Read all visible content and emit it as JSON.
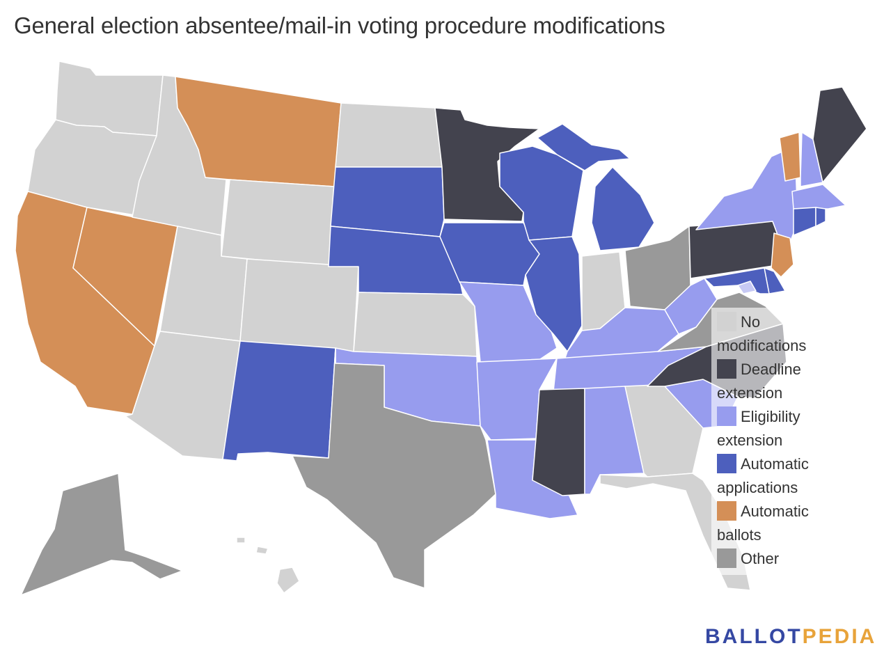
{
  "title": "General election absentee/mail-in voting procedure modifications",
  "colors": {
    "none": "#d2d2d2",
    "deadline": "#43434e",
    "eligibility": "#979cee",
    "automatic_applications": "#4d5fbd",
    "automatic_ballots": "#d48f57",
    "other": "#999999",
    "light": "#c7c9f4"
  },
  "legend": [
    {
      "label": "No modifications",
      "color": "#d2d2d2"
    },
    {
      "label": "Deadline extension",
      "color": "#43434e"
    },
    {
      "label": "Eligibility extension",
      "color": "#979cee"
    },
    {
      "label": "Automatic applications",
      "color": "#4d5fbd"
    },
    {
      "label": "Automatic ballots",
      "color": "#d48f57"
    },
    {
      "label": "Other",
      "color": "#999999"
    }
  ],
  "logo": {
    "part1": "BALLOT",
    "part2": "PEDIA",
    "color1": "#3548a3",
    "color2": "#e8a33a"
  },
  "states": [
    {
      "id": "WA",
      "category": "none"
    },
    {
      "id": "OR",
      "category": "none"
    },
    {
      "id": "CA",
      "category": "automatic_ballots"
    },
    {
      "id": "NV",
      "category": "automatic_ballots"
    },
    {
      "id": "ID",
      "category": "none"
    },
    {
      "id": "MT",
      "category": "automatic_ballots"
    },
    {
      "id": "WY",
      "category": "none"
    },
    {
      "id": "UT",
      "category": "none"
    },
    {
      "id": "AZ",
      "category": "none"
    },
    {
      "id": "CO",
      "category": "none"
    },
    {
      "id": "NM",
      "category": "automatic_applications"
    },
    {
      "id": "ND",
      "category": "none"
    },
    {
      "id": "SD",
      "category": "automatic_applications"
    },
    {
      "id": "NE",
      "category": "automatic_applications"
    },
    {
      "id": "KS",
      "category": "none"
    },
    {
      "id": "OK",
      "category": "eligibility"
    },
    {
      "id": "TX",
      "category": "other"
    },
    {
      "id": "MN",
      "category": "deadline"
    },
    {
      "id": "IA",
      "category": "automatic_applications"
    },
    {
      "id": "MO",
      "category": "eligibility"
    },
    {
      "id": "AR",
      "category": "eligibility"
    },
    {
      "id": "LA",
      "category": "eligibility"
    },
    {
      "id": "WI",
      "category": "automatic_applications"
    },
    {
      "id": "IL",
      "category": "automatic_applications"
    },
    {
      "id": "MI",
      "category": "automatic_applications"
    },
    {
      "id": "IN",
      "category": "none"
    },
    {
      "id": "OH",
      "category": "other"
    },
    {
      "id": "KY",
      "category": "eligibility"
    },
    {
      "id": "TN",
      "category": "eligibility"
    },
    {
      "id": "MS",
      "category": "deadline"
    },
    {
      "id": "AL",
      "category": "eligibility"
    },
    {
      "id": "GA",
      "category": "none"
    },
    {
      "id": "FL",
      "category": "none"
    },
    {
      "id": "SC",
      "category": "eligibility"
    },
    {
      "id": "NC",
      "category": "deadline"
    },
    {
      "id": "VA",
      "category": "other"
    },
    {
      "id": "WV",
      "category": "eligibility"
    },
    {
      "id": "PA",
      "category": "deadline"
    },
    {
      "id": "NY",
      "category": "eligibility"
    },
    {
      "id": "VT",
      "category": "automatic_ballots"
    },
    {
      "id": "NH",
      "category": "eligibility"
    },
    {
      "id": "ME",
      "category": "deadline"
    },
    {
      "id": "MA",
      "category": "eligibility"
    },
    {
      "id": "CT",
      "category": "automatic_applications"
    },
    {
      "id": "RI",
      "category": "automatic_applications"
    },
    {
      "id": "NJ",
      "category": "automatic_ballots"
    },
    {
      "id": "DE",
      "category": "automatic_applications"
    },
    {
      "id": "MD",
      "category": "automatic_applications"
    },
    {
      "id": "DC",
      "category": "light"
    },
    {
      "id": "AK",
      "category": "other"
    },
    {
      "id": "HI",
      "category": "none"
    }
  ]
}
